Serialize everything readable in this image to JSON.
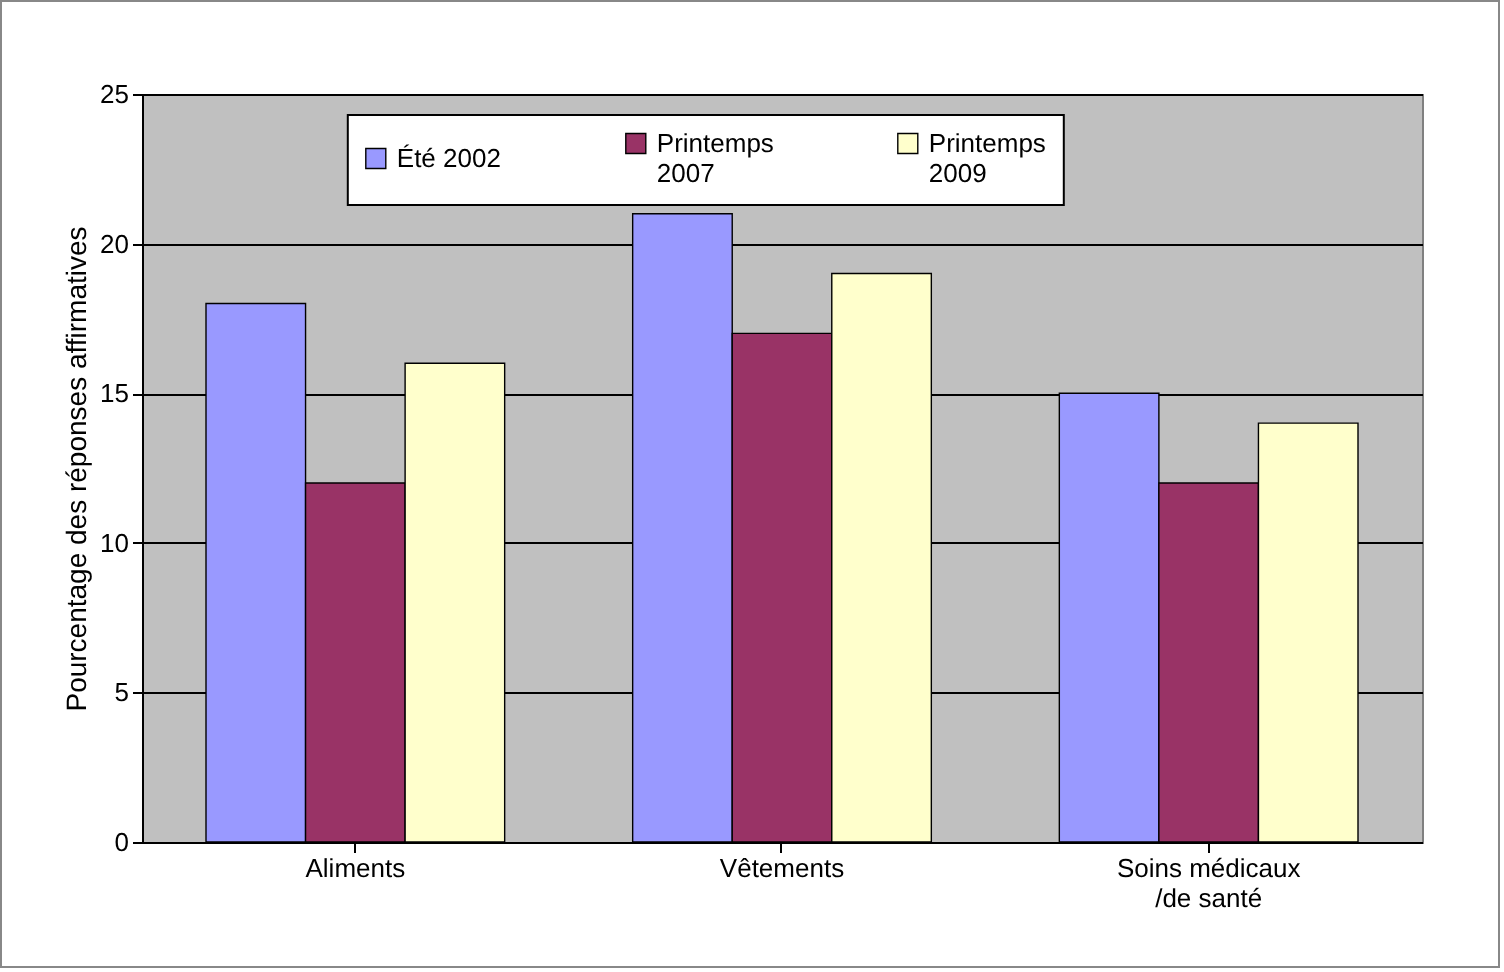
{
  "chart_data": {
    "type": "bar",
    "ylabel": "Pourcentage des réponses affirmatives",
    "categories": [
      "Aliments",
      "Vêtements",
      "Soins médicaux\n/de santé"
    ],
    "series": [
      {
        "name": "Été 2002",
        "color": "#9999ff",
        "values": [
          18,
          21,
          15
        ]
      },
      {
        "name": "Printemps\n2007",
        "color": "#993366",
        "values": [
          12,
          17,
          12
        ]
      },
      {
        "name": "Printemps\n2009",
        "color": "#ffffcc",
        "values": [
          16,
          19,
          14
        ]
      }
    ],
    "ylim": [
      0,
      25
    ],
    "yticks": [
      0,
      5,
      10,
      15,
      20,
      25
    ],
    "grid": "y",
    "legend": "top"
  }
}
